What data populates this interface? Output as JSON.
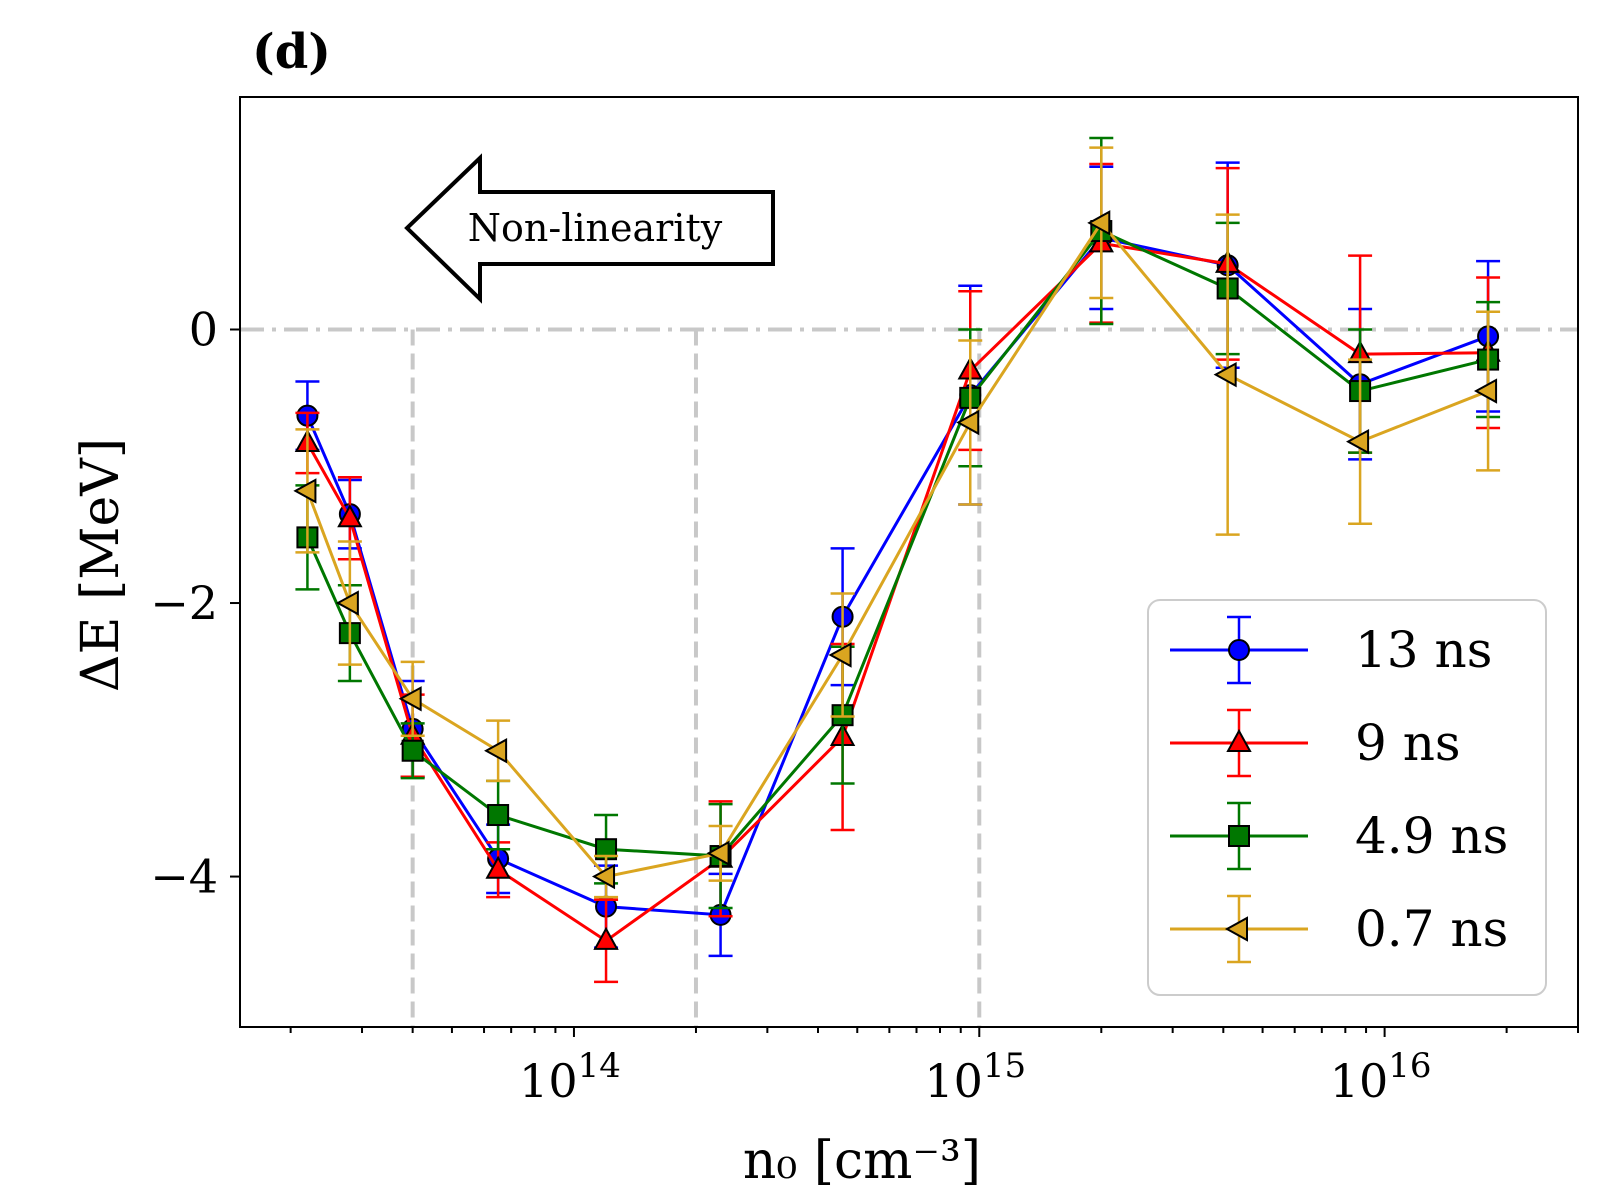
{
  "chart_data": {
    "type": "line",
    "panel_label": "(d)",
    "xlabel": "n₀  [cm⁻³]",
    "ylabel": "ΔE [MeV]",
    "xscale": "log",
    "xlim": [
      15000000000000,
      30000000000000000
    ],
    "ylim": [
      -5.1,
      1.7
    ],
    "x_tick_labels": [
      {
        "value": 100000000000000,
        "base": "10",
        "exp": "14"
      },
      {
        "value": 1000000000000000,
        "base": "10",
        "exp": "15"
      },
      {
        "value": 10000000000000000,
        "base": "10",
        "exp": "16"
      }
    ],
    "y_tick_labels": [
      {
        "value": 0,
        "label": "0"
      },
      {
        "value": -2,
        "label": "−2"
      },
      {
        "value": -4,
        "label": "−4"
      }
    ],
    "zero_line": 0,
    "vertical_guides": [
      40000000000000,
      200000000000000,
      1000000000000000
    ],
    "annotation": "Non-linearity",
    "x": [
      22000000000000,
      28000000000000,
      40000000000000,
      65000000000000,
      120000000000000,
      230000000000000,
      460000000000000,
      950000000000000,
      2000000000000000,
      4100000000000000,
      8700000000000000,
      18000000000000000
    ],
    "series": [
      {
        "name": "13 ns",
        "color": "#0000ff",
        "marker": "circle",
        "values": [
          -0.63,
          -1.35,
          -2.92,
          -3.87,
          -4.22,
          -4.28,
          -2.1,
          -0.48,
          0.67,
          0.47,
          -0.4,
          -0.05
        ],
        "errors": [
          0.25,
          0.25,
          0.35,
          0.25,
          0.3,
          0.3,
          0.5,
          0.8,
          0.52,
          0.75,
          0.55,
          0.55
        ]
      },
      {
        "name": "9 ns",
        "color": "#ff0000",
        "marker": "triangle-up",
        "values": [
          -0.83,
          -1.38,
          -2.97,
          -3.95,
          -4.47,
          -3.87,
          -2.98,
          -0.3,
          0.63,
          0.48,
          -0.18,
          -0.17
        ],
        "errors": [
          0.22,
          0.3,
          0.3,
          0.2,
          0.3,
          0.42,
          0.68,
          0.58,
          0.58,
          0.7,
          0.72,
          0.55
        ]
      },
      {
        "name": "4.9 ns",
        "color": "#007700",
        "marker": "square",
        "values": [
          -1.52,
          -2.22,
          -3.08,
          -3.55,
          -3.8,
          -3.85,
          -2.82,
          -0.5,
          0.72,
          0.3,
          -0.45,
          -0.22
        ],
        "errors": [
          0.38,
          0.35,
          0.2,
          0.25,
          0.25,
          0.38,
          0.5,
          0.5,
          0.68,
          0.48,
          0.45,
          0.42
        ]
      },
      {
        "name": "0.7 ns",
        "color": "#daa520",
        "marker": "triangle-left",
        "values": [
          -1.18,
          -2.0,
          -2.7,
          -3.08,
          -4.0,
          -3.83,
          -2.38,
          -0.68,
          0.78,
          -0.33,
          -0.82,
          -0.45
        ],
        "errors": [
          0.45,
          0.45,
          0.27,
          0.22,
          0.15,
          0.2,
          0.45,
          0.6,
          0.55,
          1.17,
          0.6,
          0.58
        ]
      }
    ],
    "legend_position": "lower-right"
  }
}
